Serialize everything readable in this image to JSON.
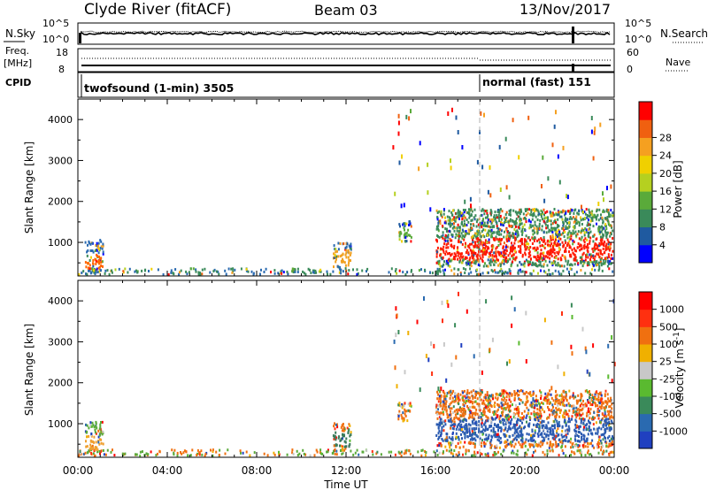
{
  "header": {
    "station": "Clyde River (fitACF)",
    "beam": "Beam 03",
    "date": "13/Nov/2017"
  },
  "top_panel": {
    "left_label": "N.Sky",
    "left_ticks": [
      "10^5",
      "10^0"
    ],
    "right_ticks": [
      "10^5",
      "10^0"
    ],
    "right_label": "N.Search"
  },
  "freq_panel": {
    "left_label_1": "Freq.",
    "left_label_2": "[MHz]",
    "left_ticks": [
      "18",
      "8"
    ],
    "right_ticks": [
      "60",
      "0"
    ],
    "right_label": "Nave",
    "cpid_label": "CPID"
  },
  "cpid_segments": [
    {
      "label": "twofsound (1-min) 3505",
      "start_hour": 0
    },
    {
      "label": "normal (fast) 151",
      "start_hour": 18
    }
  ],
  "colors": {
    "axes": "#000000",
    "marker_line": "#b0b0b0"
  },
  "chart_data": [
    {
      "type": "heatmap",
      "name": "power",
      "ylabel": "Slant Range [km]",
      "xlabel": "",
      "x_ticks": [
        "00:00",
        "04:00",
        "08:00",
        "12:00",
        "16:00",
        "20:00",
        "00:00"
      ],
      "y_ticks": [
        "1000",
        "2000",
        "3000",
        "4000"
      ],
      "ylim": [
        180,
        4500
      ],
      "xlim_hours": [
        0,
        24
      ],
      "colorbar": {
        "label": "Power [dB]",
        "ticks": [
          "4",
          "8",
          "12",
          "16",
          "20",
          "24",
          "28"
        ],
        "colors": [
          "#0000ff",
          "#1f5aa0",
          "#3a8a5a",
          "#5aaa3a",
          "#b5d020",
          "#f0d000",
          "#f5a020",
          "#f06010",
          "#ff0000"
        ]
      },
      "regions": [
        {
          "t": [
            0.3,
            1.1
          ],
          "r": [
            250,
            1050
          ],
          "mid_r": [
            350,
            700
          ],
          "core": "#ff6600",
          "edge": "#2a6ab0",
          "density": 0.55
        },
        {
          "t": [
            11.4,
            12.2
          ],
          "r": [
            300,
            1000
          ],
          "mid_r": [
            400,
            800
          ],
          "core": "#f0a020",
          "edge": "#2a6ab0",
          "density": 0.5
        },
        {
          "t": [
            14.3,
            14.9
          ],
          "r": [
            1000,
            1500
          ],
          "mid_r": [
            1100,
            1350
          ],
          "core": "#5aaa3a",
          "edge": "#1f5aa0",
          "density": 0.55
        },
        {
          "t": [
            16.0,
            23.9
          ],
          "r": [
            400,
            1800
          ],
          "mid_r": [
            550,
            1100
          ],
          "core": "#ff1a00",
          "edge": "#3a8a5a",
          "density": 0.6
        }
      ]
    },
    {
      "type": "heatmap",
      "name": "velocity",
      "ylabel": "Slant Range [km]",
      "xlabel": "Time UT",
      "x_ticks": [
        "00:00",
        "04:00",
        "08:00",
        "12:00",
        "16:00",
        "20:00",
        "00:00"
      ],
      "y_ticks": [
        "1000",
        "2000",
        "3000",
        "4000"
      ],
      "ylim": [
        180,
        4500
      ],
      "xlim_hours": [
        0,
        24
      ],
      "colorbar": {
        "label": "Velocity [m s^-1]",
        "ticks": [
          "1000",
          "500",
          "100",
          "25",
          "-25",
          "-100",
          "-500",
          "-1000"
        ],
        "colors": [
          "#2040c0",
          "#2a6ab0",
          "#3a8a5a",
          "#5aba30",
          "#c8c8c8",
          "#f0b000",
          "#f07010",
          "#ff3010",
          "#ff0000"
        ]
      },
      "regions": [
        {
          "t": [
            0.3,
            1.1
          ],
          "r": [
            250,
            1050
          ],
          "mid_r": [
            350,
            700
          ],
          "core": "#f0a030",
          "edge": "#5aaa3a",
          "density": 0.5
        },
        {
          "t": [
            11.4,
            12.2
          ],
          "r": [
            300,
            1000
          ],
          "mid_r": [
            400,
            800
          ],
          "core": "#3a7a5a",
          "edge": "#f07010",
          "density": 0.5
        },
        {
          "t": [
            14.3,
            14.9
          ],
          "r": [
            1000,
            1500
          ],
          "mid_r": [
            1100,
            1350
          ],
          "core": "#f07010",
          "edge": "#f0b000",
          "density": 0.55
        },
        {
          "t": [
            16.0,
            23.9
          ],
          "r": [
            400,
            1800
          ],
          "mid_r": [
            550,
            1100
          ],
          "core": "#2a5ab0",
          "edge": "#f07010",
          "density": 0.6
        }
      ]
    }
  ]
}
